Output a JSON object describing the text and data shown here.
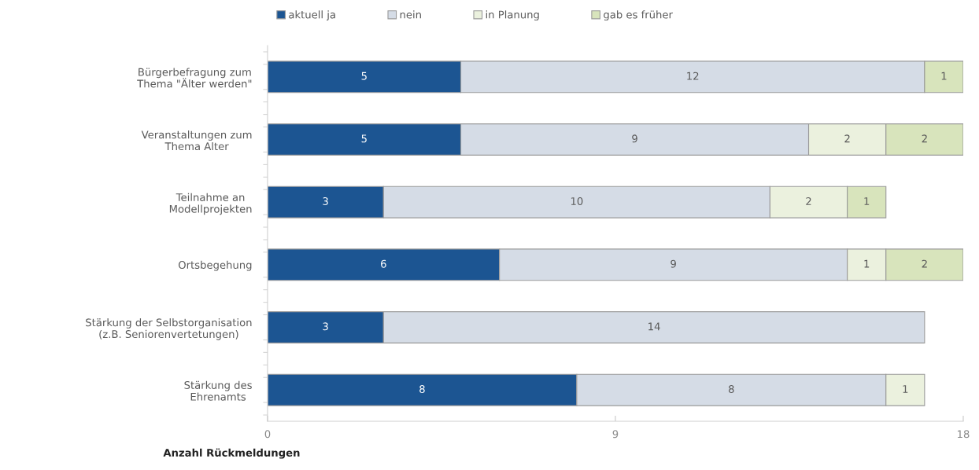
{
  "chart_data": {
    "type": "bar",
    "orientation": "horizontal",
    "stacked": true,
    "categories": [
      "Bürgerbefragung zum\nThema \"Älter werden\"",
      "Veranstaltungen zum\nThema Alter",
      "Teilnahme an\nModellprojekten",
      "Ortsbegehung",
      "Stärkung der Selbstorganisation\n(z.B. Seniorenvertetungen)",
      "Stärkung des\nEhrenamts"
    ],
    "series": [
      {
        "name": "aktuell ja",
        "color": "#1c5592",
        "values": [
          5,
          5,
          3,
          6,
          3,
          8
        ]
      },
      {
        "name": "nein",
        "color": "#d5dce6",
        "values": [
          12,
          9,
          10,
          9,
          14,
          8
        ]
      },
      {
        "name": "in Planung",
        "color": "#ebf1de",
        "values": [
          null,
          2,
          2,
          1,
          null,
          1
        ]
      },
      {
        "name": "gab es früher",
        "color": "#d8e4bc",
        "values": [
          1,
          2,
          1,
          2,
          null,
          null
        ]
      }
    ],
    "xlabel": "Anzahl Rückmeldungen",
    "xlim": [
      0,
      18
    ],
    "xticks": [
      0,
      9,
      18
    ],
    "legend": "top",
    "data_labels": true,
    "grid": false
  }
}
